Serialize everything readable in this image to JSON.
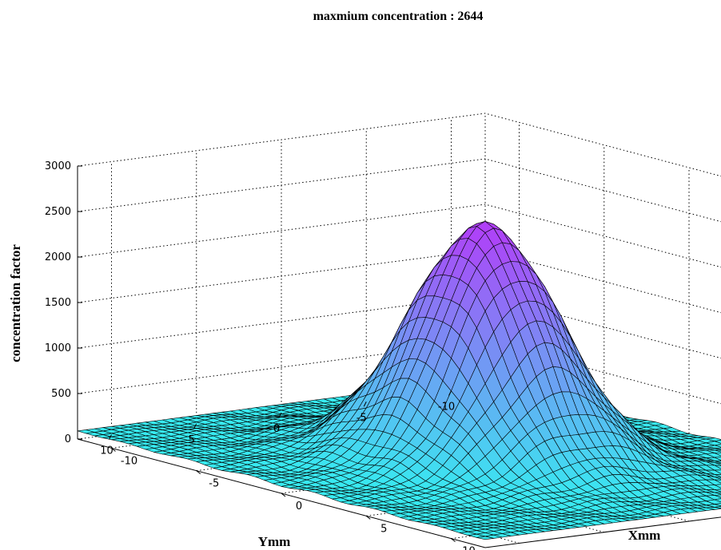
{
  "chart_data": {
    "type": "surface3d",
    "title": "maxmium concentration : 2644",
    "xlabel": "Xmm",
    "ylabel": "Ymm",
    "zlabel": "concentration factor",
    "xlim": [
      -12,
      12
    ],
    "ylim": [
      -12,
      12
    ],
    "zlim": [
      0,
      3000
    ],
    "x_ticks": [
      -10,
      -5,
      0,
      5,
      10
    ],
    "y_ticks": [
      10,
      5,
      0,
      -5,
      -10
    ],
    "z_ticks": [
      0,
      500,
      1000,
      1500,
      2000,
      2500,
      3000
    ],
    "x_tick_labels": [
      "-10",
      "-5",
      "0",
      "5",
      "10"
    ],
    "y_tick_labels": [
      "10",
      "5",
      "0",
      "-5",
      "-10"
    ],
    "z_tick_labels": [
      "0",
      "500",
      "1000",
      "1500",
      "2000",
      "2500",
      "3000"
    ],
    "peak": {
      "x": 0,
      "y": 0,
      "z": 2644
    },
    "sigma_mm": 3.2,
    "background": 90,
    "grid": true,
    "colormap": [
      "#33f0f0",
      "#b040f8"
    ]
  }
}
